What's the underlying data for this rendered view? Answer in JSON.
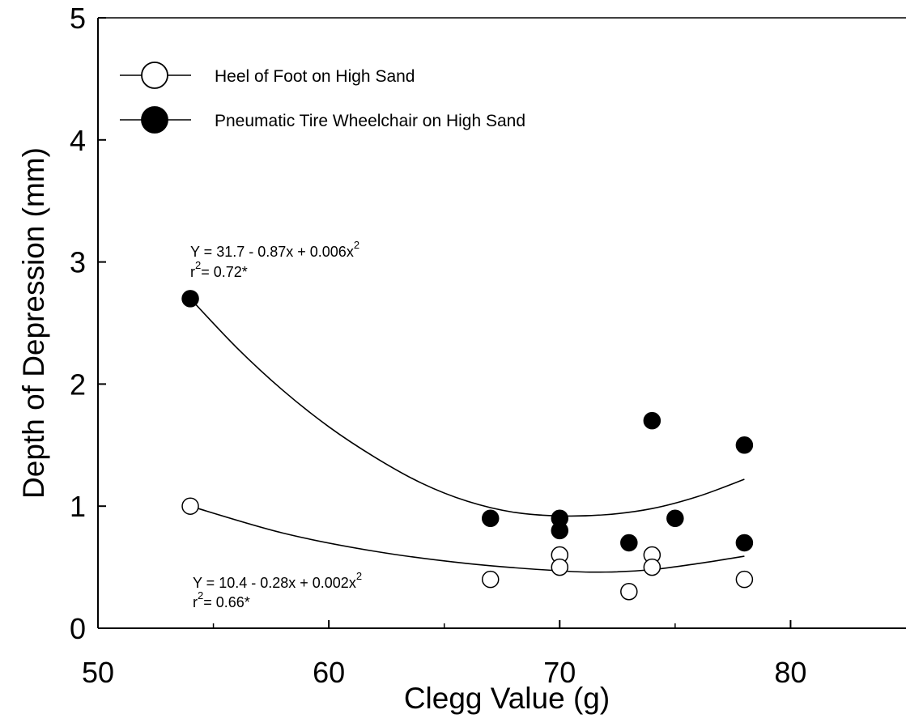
{
  "chart_data": {
    "type": "scatter",
    "title": "",
    "xlabel": "Clegg Value (g)",
    "ylabel": "Depth of Depression (mm)",
    "xlim": [
      50,
      85
    ],
    "ylim": [
      0,
      5
    ],
    "xticks": [
      50,
      60,
      70,
      80
    ],
    "xtick_labels": [
      "50",
      "60",
      "70",
      "80"
    ],
    "yticks": [
      0,
      1,
      2,
      3,
      4,
      5
    ],
    "ytick_labels": [
      "0",
      "1",
      "2",
      "3",
      "4",
      "5"
    ],
    "grid": false,
    "legend_position": "top-left",
    "series": [
      {
        "name": "Heel of Foot on High Sand",
        "marker": "open-circle",
        "color": "#000000",
        "points": [
          {
            "x": 54,
            "y": 1.0
          },
          {
            "x": 67,
            "y": 0.4
          },
          {
            "x": 70,
            "y": 0.6
          },
          {
            "x": 70,
            "y": 0.5
          },
          {
            "x": 73,
            "y": 0.3
          },
          {
            "x": 74,
            "y": 0.6
          },
          {
            "x": 74,
            "y": 0.5
          },
          {
            "x": 78,
            "y": 0.4
          }
        ],
        "fit": {
          "equation": "Y = 10.4 - 0.28x + 0.002x",
          "equation_exponent": "2",
          "r2_label": "r",
          "r2_exponent": "2",
          "r2_value": "= 0.66*",
          "x_range": [
            54,
            78
          ],
          "curve": [
            [
              54,
              1.0
            ],
            [
              58,
              0.78
            ],
            [
              62,
              0.63
            ],
            [
              66,
              0.53
            ],
            [
              70,
              0.47
            ],
            [
              72,
              0.46
            ],
            [
              74,
              0.48
            ],
            [
              76,
              0.53
            ],
            [
              78,
              0.59
            ]
          ]
        }
      },
      {
        "name": "Pneumatic Tire Wheelchair on High Sand",
        "marker": "filled-circle",
        "color": "#000000",
        "points": [
          {
            "x": 54,
            "y": 2.7
          },
          {
            "x": 67,
            "y": 0.9
          },
          {
            "x": 70,
            "y": 0.9
          },
          {
            "x": 70,
            "y": 0.8
          },
          {
            "x": 73,
            "y": 0.7
          },
          {
            "x": 74,
            "y": 1.7
          },
          {
            "x": 75,
            "y": 0.9
          },
          {
            "x": 78,
            "y": 1.5
          },
          {
            "x": 78,
            "y": 0.7
          }
        ],
        "fit": {
          "equation": "Y = 31.7 - 0.87x + 0.006x",
          "equation_exponent": "2",
          "r2_label": "r",
          "r2_exponent": "2",
          "r2_value": "= 0.72*",
          "x_range": [
            54,
            78
          ],
          "curve": [
            [
              54,
              2.7
            ],
            [
              56,
              2.3
            ],
            [
              58,
              1.95
            ],
            [
              60,
              1.65
            ],
            [
              62,
              1.4
            ],
            [
              64,
              1.19
            ],
            [
              66,
              1.04
            ],
            [
              68,
              0.95
            ],
            [
              70,
              0.92
            ],
            [
              72,
              0.93
            ],
            [
              74,
              0.98
            ],
            [
              76,
              1.08
            ],
            [
              78,
              1.22
            ]
          ]
        }
      }
    ]
  }
}
